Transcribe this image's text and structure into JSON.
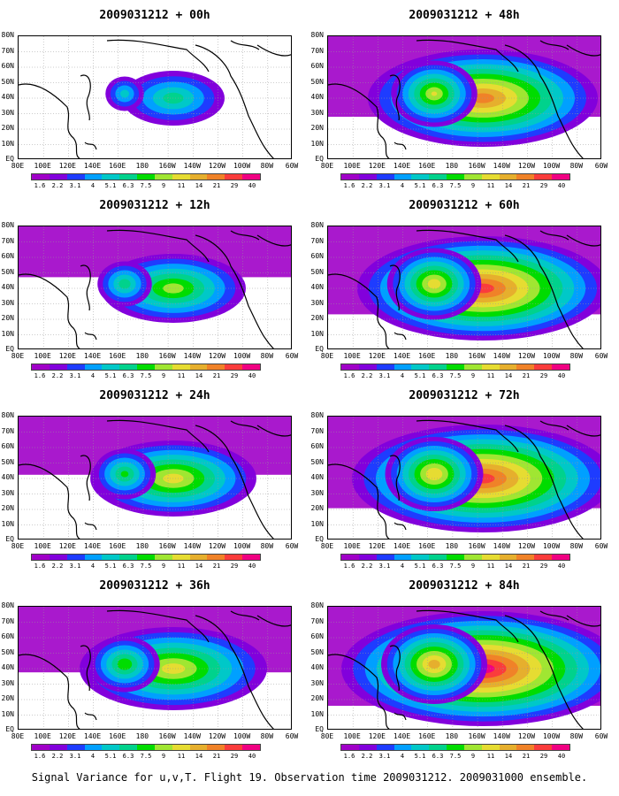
{
  "panels": [
    {
      "title": "2009031212 + 00h",
      "intensity": 0.15
    },
    {
      "title": "2009031212 + 48h",
      "intensity": 0.75
    },
    {
      "title": "2009031212 + 12h",
      "intensity": 0.35
    },
    {
      "title": "2009031212 + 60h",
      "intensity": 0.85
    },
    {
      "title": "2009031212 + 24h",
      "intensity": 0.45
    },
    {
      "title": "2009031212 + 72h",
      "intensity": 0.9
    },
    {
      "title": "2009031212 + 36h",
      "intensity": 0.55
    },
    {
      "title": "2009031212 + 84h",
      "intensity": 1.0
    }
  ],
  "lat_labels": [
    "80N",
    "70N",
    "60N",
    "50N",
    "40N",
    "30N",
    "20N",
    "10N",
    "EQ"
  ],
  "lon_labels": [
    "80E",
    "100E",
    "120E",
    "140E",
    "160E",
    "180",
    "160W",
    "140W",
    "120W",
    "100W",
    "80W",
    "60W"
  ],
  "colorbar": {
    "labels": [
      "1.6",
      "2.2",
      "3.1",
      "4",
      "5.1",
      "6.3",
      "7.5",
      "9",
      "11",
      "14",
      "21",
      "29",
      "40"
    ],
    "colors": [
      "#a000c8",
      "#8200dc",
      "#1e3cff",
      "#00a0ff",
      "#00c8c8",
      "#00d28c",
      "#00dc00",
      "#a0e632",
      "#e6dc32",
      "#e6af2d",
      "#f08228",
      "#fa3c3c",
      "#f00082"
    ]
  },
  "footer": "Signal Variance for u,v,T. Flight 19. Observation time 2009031212. 2009031000 ensemble."
}
